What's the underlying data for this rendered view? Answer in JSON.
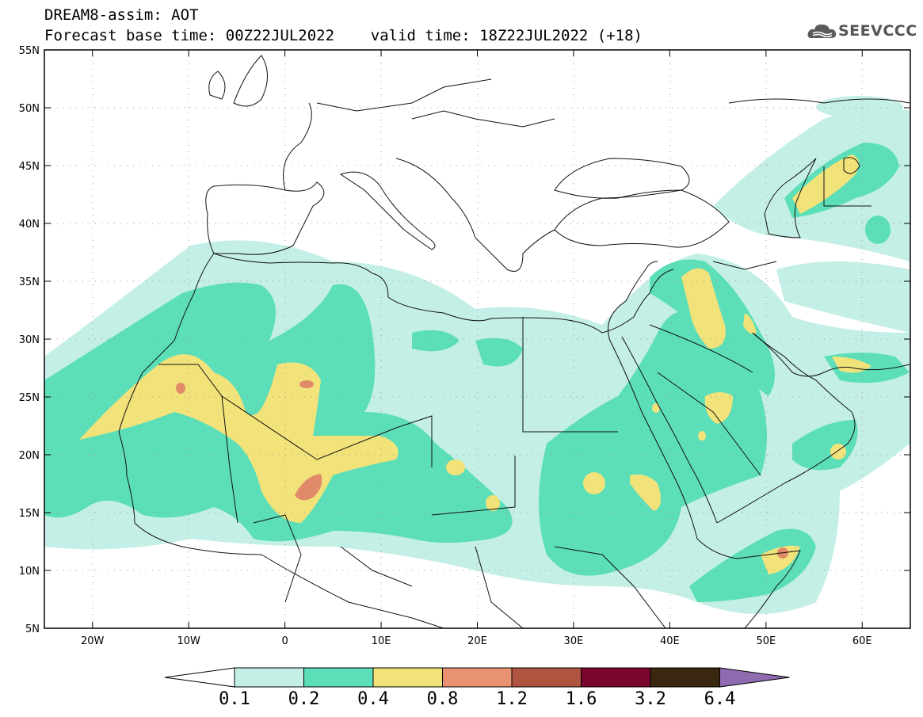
{
  "header": {
    "title_line1": "DREAM8-assim: AOT",
    "title_line2": "Forecast base time: 00Z22JUL2022    valid time: 18Z22JUL2022 (+18)",
    "logo_text": "SEEVCCC",
    "logo_icon": "cloud-icon"
  },
  "map": {
    "lat_labels": [
      "55N",
      "50N",
      "45N",
      "40N",
      "35N",
      "30N",
      "25N",
      "20N",
      "15N",
      "10N",
      "5N"
    ],
    "lat_values": [
      55,
      50,
      45,
      40,
      35,
      30,
      25,
      20,
      15,
      10,
      5
    ],
    "lon_labels": [
      "20W",
      "10W",
      "0",
      "10E",
      "20E",
      "30E",
      "40E",
      "50E",
      "60E"
    ],
    "lon_values": [
      -20,
      -10,
      0,
      10,
      20,
      30,
      40,
      50,
      60
    ],
    "lon_range": [
      -25,
      65
    ],
    "lat_range": [
      5,
      55
    ]
  },
  "colorbar": {
    "labels": [
      "0.1",
      "0.2",
      "0.4",
      "0.8",
      "1.2",
      "1.6",
      "3.2",
      "6.4"
    ],
    "colors": [
      "#ffffff",
      "#c4efe6",
      "#5cdfb9",
      "#f2e27a",
      "#e99272",
      "#b05442",
      "#7a0630",
      "#3a2710",
      "#8f6cb0"
    ]
  },
  "colors": {
    "light_teal": "#c4efe6",
    "green": "#5cdfb9",
    "yellow": "#f2e27a",
    "salmon": "#e18a6a"
  }
}
